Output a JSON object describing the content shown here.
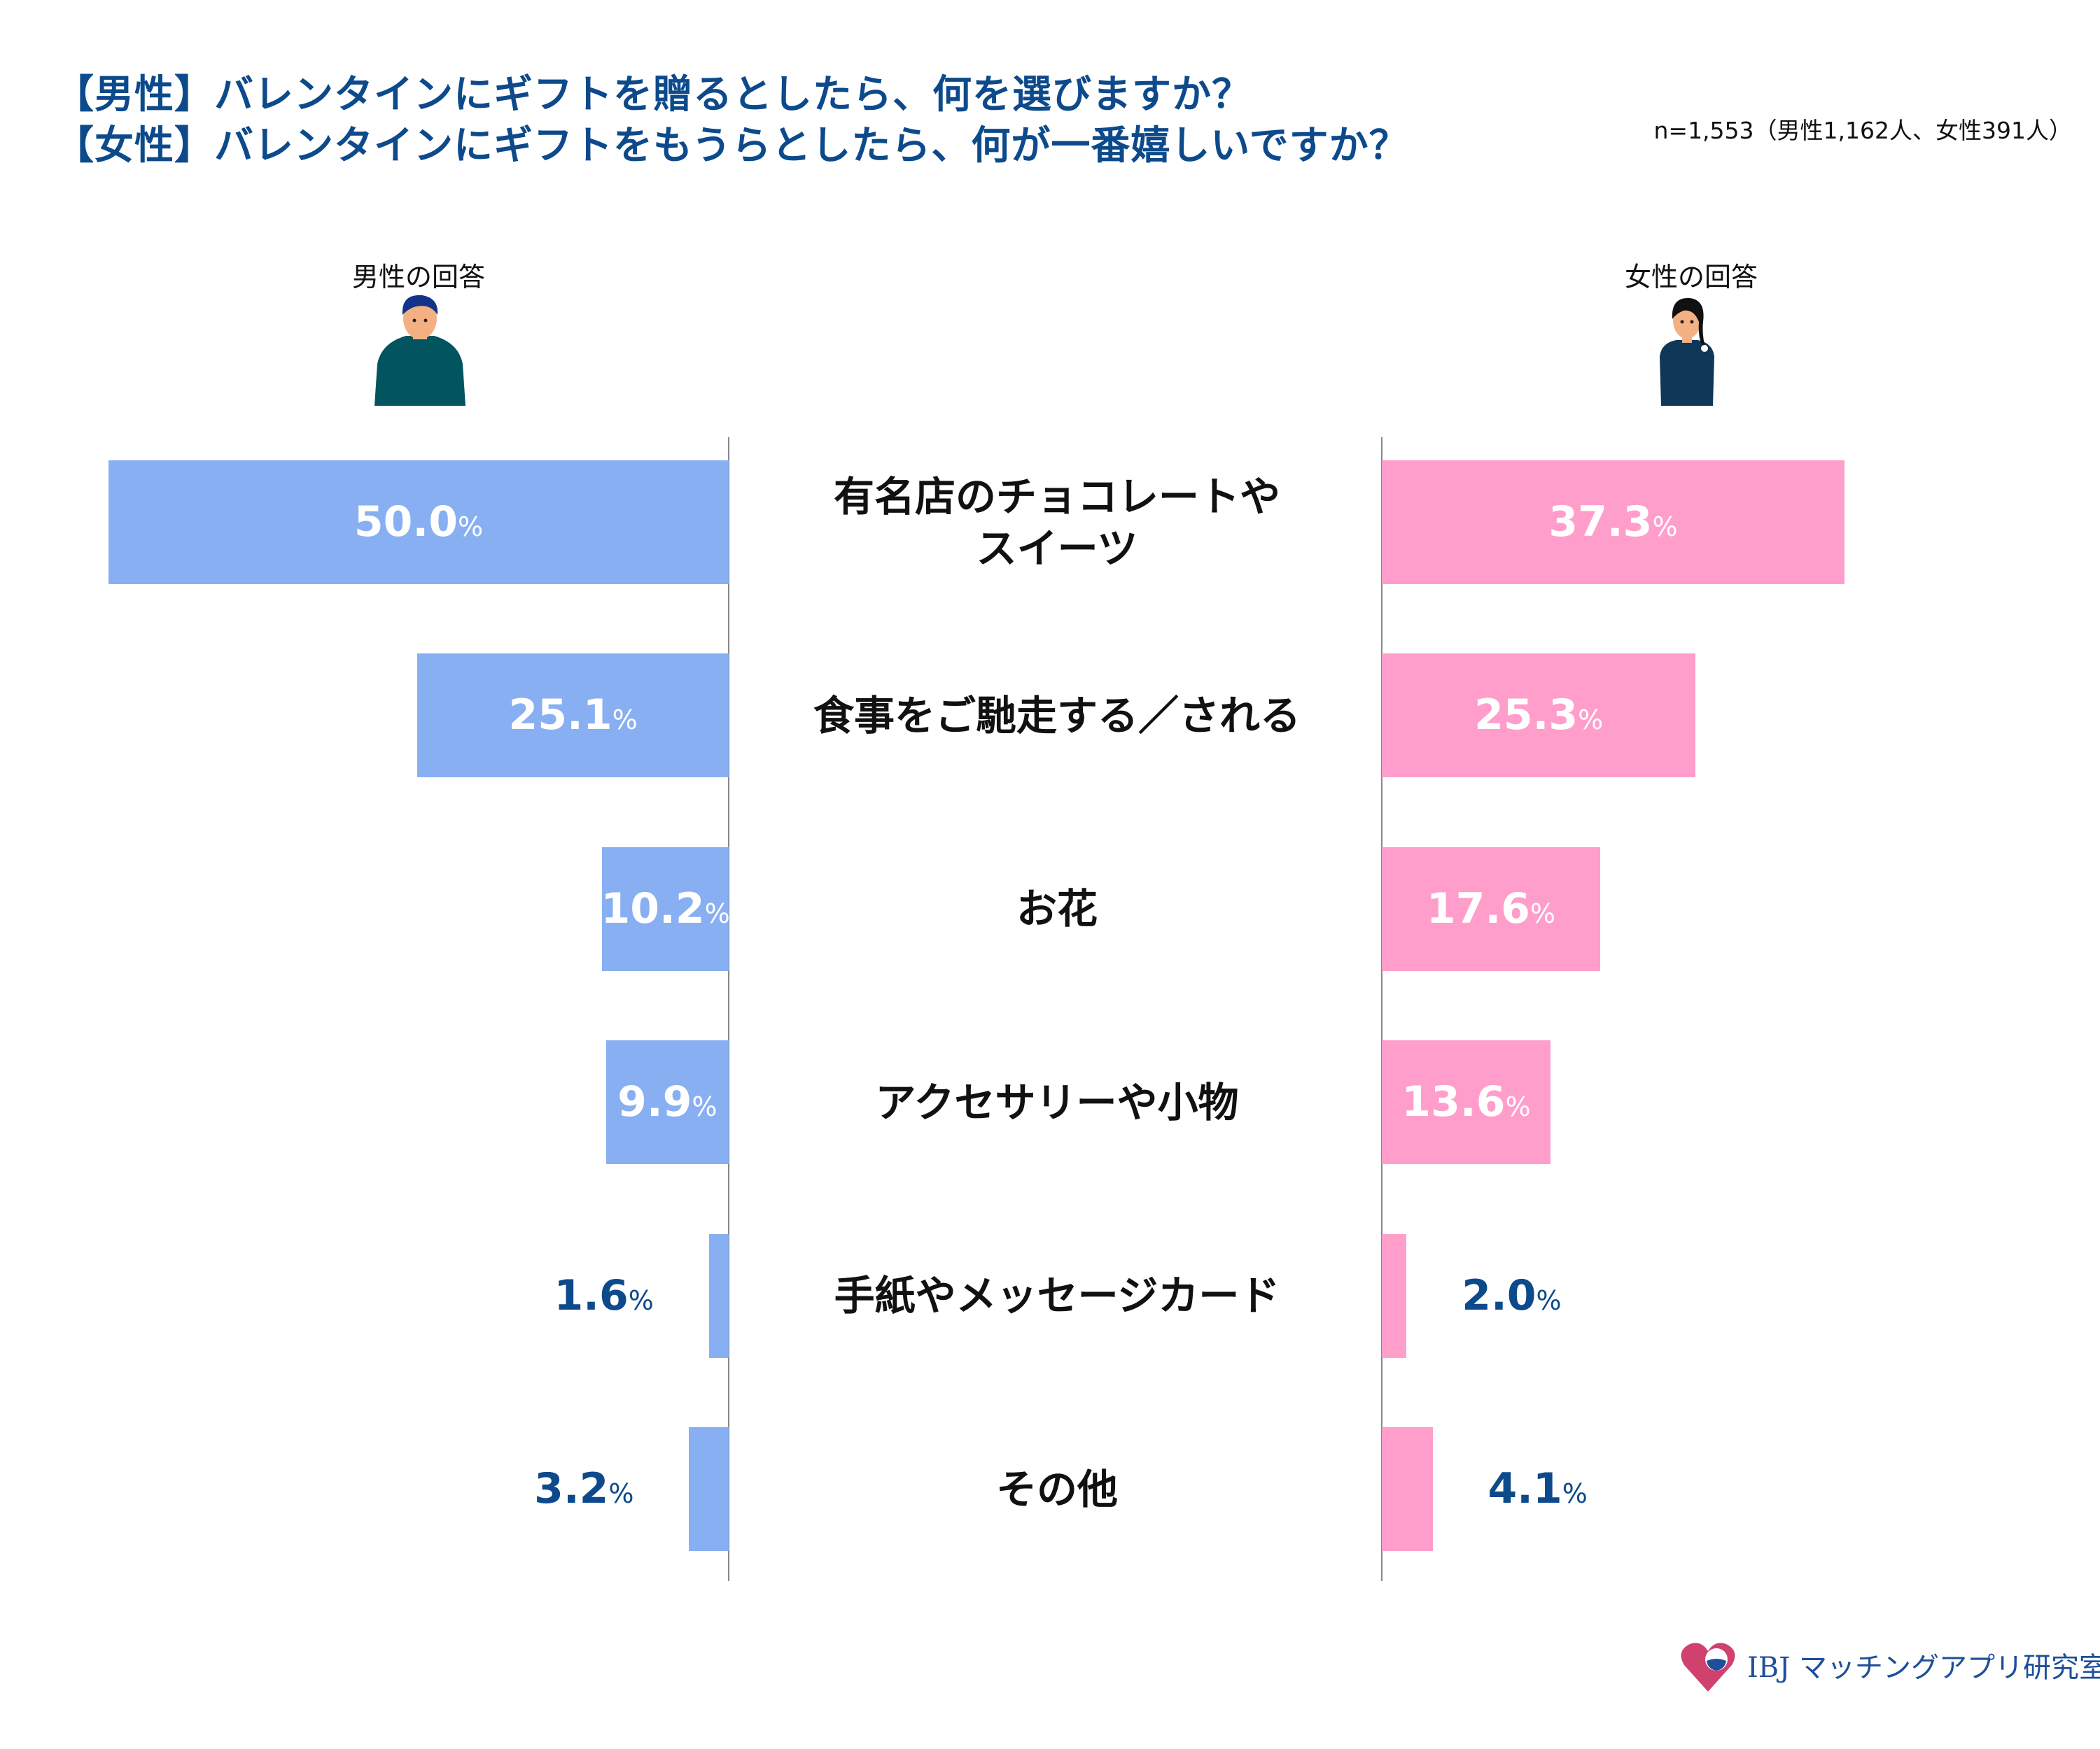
{
  "title_lines": [
    "【男性】バレンタインにギフトを贈るとしたら、何を選びますか？",
    "【女性】バレンタインにギフトをもうらとしたら、何が一番嬉しいですか？"
  ],
  "sample_note": "n=1,553（男性1,162人、女性391人）",
  "group_labels": {
    "male": "男性の回答",
    "female": "女性の回答"
  },
  "logo_text": "IBJ マッチングアプリ研究室",
  "colors": {
    "male": "#88aff2",
    "female": "#ff9ecb",
    "title": "#0d4a8c",
    "outside_label": "#0d4a8c"
  },
  "chart_data": {
    "type": "bar",
    "orientation": "horizontal-butterfly",
    "unit": "%",
    "categories": [
      "有名店のチョコレートや\nスイーツ",
      "食事をご馳走する／される",
      "お花",
      "アクセサリーや小物",
      "手紙やメッセージカード",
      "その他"
    ],
    "series": [
      {
        "name": "男性の回答",
        "values": [
          50.0,
          25.1,
          10.2,
          9.9,
          1.6,
          3.2
        ]
      },
      {
        "name": "女性の回答",
        "values": [
          37.3,
          25.3,
          17.6,
          13.6,
          2.0,
          4.1
        ]
      }
    ]
  }
}
